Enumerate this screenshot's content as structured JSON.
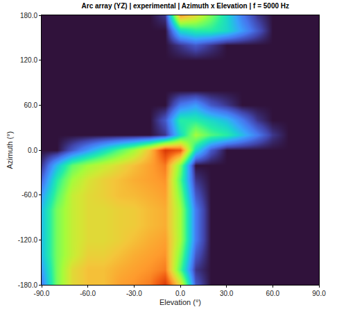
{
  "chart_data": {
    "type": "heatmap",
    "title": "Arc array (YZ) | experimental | Azimuth x Elevation | f = 5000 Hz",
    "x_label": "Elevation (°)",
    "y_label": "Azimuth (°)",
    "x": [
      -90,
      -80,
      -70,
      -60,
      -50,
      -40,
      -30,
      -20,
      -10,
      0,
      10,
      20,
      30,
      40,
      50,
      60,
      70,
      80,
      90
    ],
    "y": [
      -180,
      -160,
      -140,
      -120,
      -100,
      -80,
      -60,
      -40,
      -20,
      0,
      20,
      40,
      60,
      80,
      100,
      120,
      140,
      160,
      180
    ],
    "z": [
      [
        0.15,
        0.45,
        0.6,
        0.65,
        0.65,
        0.7,
        0.72,
        0.75,
        0.85,
        0.6,
        0.1,
        0,
        0,
        0,
        0,
        0,
        0,
        0,
        0
      ],
      [
        0.2,
        0.45,
        0.6,
        0.65,
        0.65,
        0.68,
        0.7,
        0.72,
        0.75,
        0.4,
        0.05,
        0,
        0,
        0,
        0,
        0,
        0,
        0,
        0
      ],
      [
        0.25,
        0.45,
        0.55,
        0.62,
        0.62,
        0.65,
        0.68,
        0.7,
        0.72,
        0.45,
        0.1,
        0,
        0,
        0,
        0,
        0,
        0,
        0,
        0
      ],
      [
        0.25,
        0.45,
        0.55,
        0.6,
        0.6,
        0.62,
        0.65,
        0.68,
        0.7,
        0.5,
        0.15,
        0,
        0,
        0,
        0,
        0,
        0,
        0,
        0
      ],
      [
        0.25,
        0.45,
        0.55,
        0.6,
        0.6,
        0.62,
        0.63,
        0.66,
        0.68,
        0.5,
        0.15,
        0,
        0,
        0,
        0,
        0,
        0,
        0,
        0
      ],
      [
        0.25,
        0.45,
        0.55,
        0.6,
        0.6,
        0.62,
        0.63,
        0.66,
        0.68,
        0.5,
        0.15,
        0,
        0,
        0,
        0,
        0,
        0,
        0,
        0
      ],
      [
        0.2,
        0.4,
        0.55,
        0.6,
        0.62,
        0.65,
        0.66,
        0.68,
        0.7,
        0.45,
        0.1,
        0,
        0,
        0,
        0,
        0,
        0,
        0,
        0
      ],
      [
        0.12,
        0.35,
        0.5,
        0.58,
        0.62,
        0.65,
        0.68,
        0.7,
        0.72,
        0.4,
        0.05,
        0,
        0,
        0,
        0,
        0,
        0,
        0,
        0
      ],
      [
        0.05,
        0.25,
        0.42,
        0.5,
        0.55,
        0.6,
        0.65,
        0.7,
        0.75,
        0.45,
        0,
        0,
        0,
        0,
        0,
        0,
        0,
        0,
        0
      ],
      [
        0,
        0,
        0.1,
        0.2,
        0.3,
        0.4,
        0.5,
        0.65,
        0.85,
        0.8,
        0.3,
        0.1,
        0,
        0,
        0,
        0,
        0,
        0,
        0
      ],
      [
        0,
        0,
        0,
        0,
        0,
        0,
        0,
        0,
        0.05,
        0.3,
        0.5,
        0.4,
        0.35,
        0.25,
        0.15,
        0.05,
        0,
        0,
        0
      ],
      [
        0,
        0,
        0,
        0,
        0,
        0,
        0,
        0,
        0.1,
        0.35,
        0.35,
        0.3,
        0.25,
        0.15,
        0.05,
        0,
        0,
        0,
        0
      ],
      [
        0,
        0,
        0,
        0,
        0,
        0,
        0,
        0,
        0,
        0.15,
        0.2,
        0.1,
        0.05,
        0,
        0,
        0,
        0,
        0,
        0
      ],
      [
        0,
        0,
        0,
        0,
        0,
        0,
        0,
        0,
        0,
        0,
        0,
        0,
        0,
        0,
        0,
        0,
        0,
        0,
        0
      ],
      [
        0,
        0,
        0,
        0,
        0,
        0,
        0,
        0,
        0,
        0,
        0,
        0,
        0,
        0,
        0,
        0,
        0,
        0,
        0
      ],
      [
        0,
        0,
        0,
        0,
        0,
        0,
        0,
        0,
        0,
        0,
        0,
        0,
        0,
        0,
        0,
        0,
        0,
        0,
        0
      ],
      [
        0,
        0,
        0,
        0,
        0,
        0,
        0,
        0,
        0,
        0.05,
        0.1,
        0.05,
        0,
        0,
        0,
        0,
        0,
        0,
        0
      ],
      [
        0,
        0,
        0,
        0,
        0,
        0,
        0,
        0,
        0,
        0.3,
        0.35,
        0.35,
        0.3,
        0.2,
        0.1,
        0,
        0,
        0,
        0
      ],
      [
        0,
        0,
        0,
        0,
        0,
        0,
        0,
        0,
        0.05,
        0.7,
        0.6,
        0.45,
        0.3,
        0.15,
        0.05,
        0,
        0,
        0,
        0
      ]
    ],
    "zlim": [
      0,
      1
    ],
    "xlim": [
      -90,
      90
    ],
    "ylim": [
      -180,
      180
    ],
    "xticks": [
      {
        "value": -90,
        "label": "-90.0"
      },
      {
        "value": -60,
        "label": "-60.0"
      },
      {
        "value": -30,
        "label": "-30.0"
      },
      {
        "value": 0,
        "label": "0.0"
      },
      {
        "value": 30,
        "label": "30.0"
      },
      {
        "value": 60,
        "label": "60.0"
      },
      {
        "value": 90,
        "label": "90.0"
      }
    ],
    "yticks": [
      {
        "value": -180,
        "label": "-180.0"
      },
      {
        "value": -120,
        "label": "-120.0"
      },
      {
        "value": -60,
        "label": "-60.0"
      },
      {
        "value": 0,
        "label": "0.0"
      },
      {
        "value": 60,
        "label": "60.0"
      },
      {
        "value": 120,
        "label": "120.0"
      },
      {
        "value": 180,
        "label": "180.0"
      }
    ],
    "grid": false
  }
}
